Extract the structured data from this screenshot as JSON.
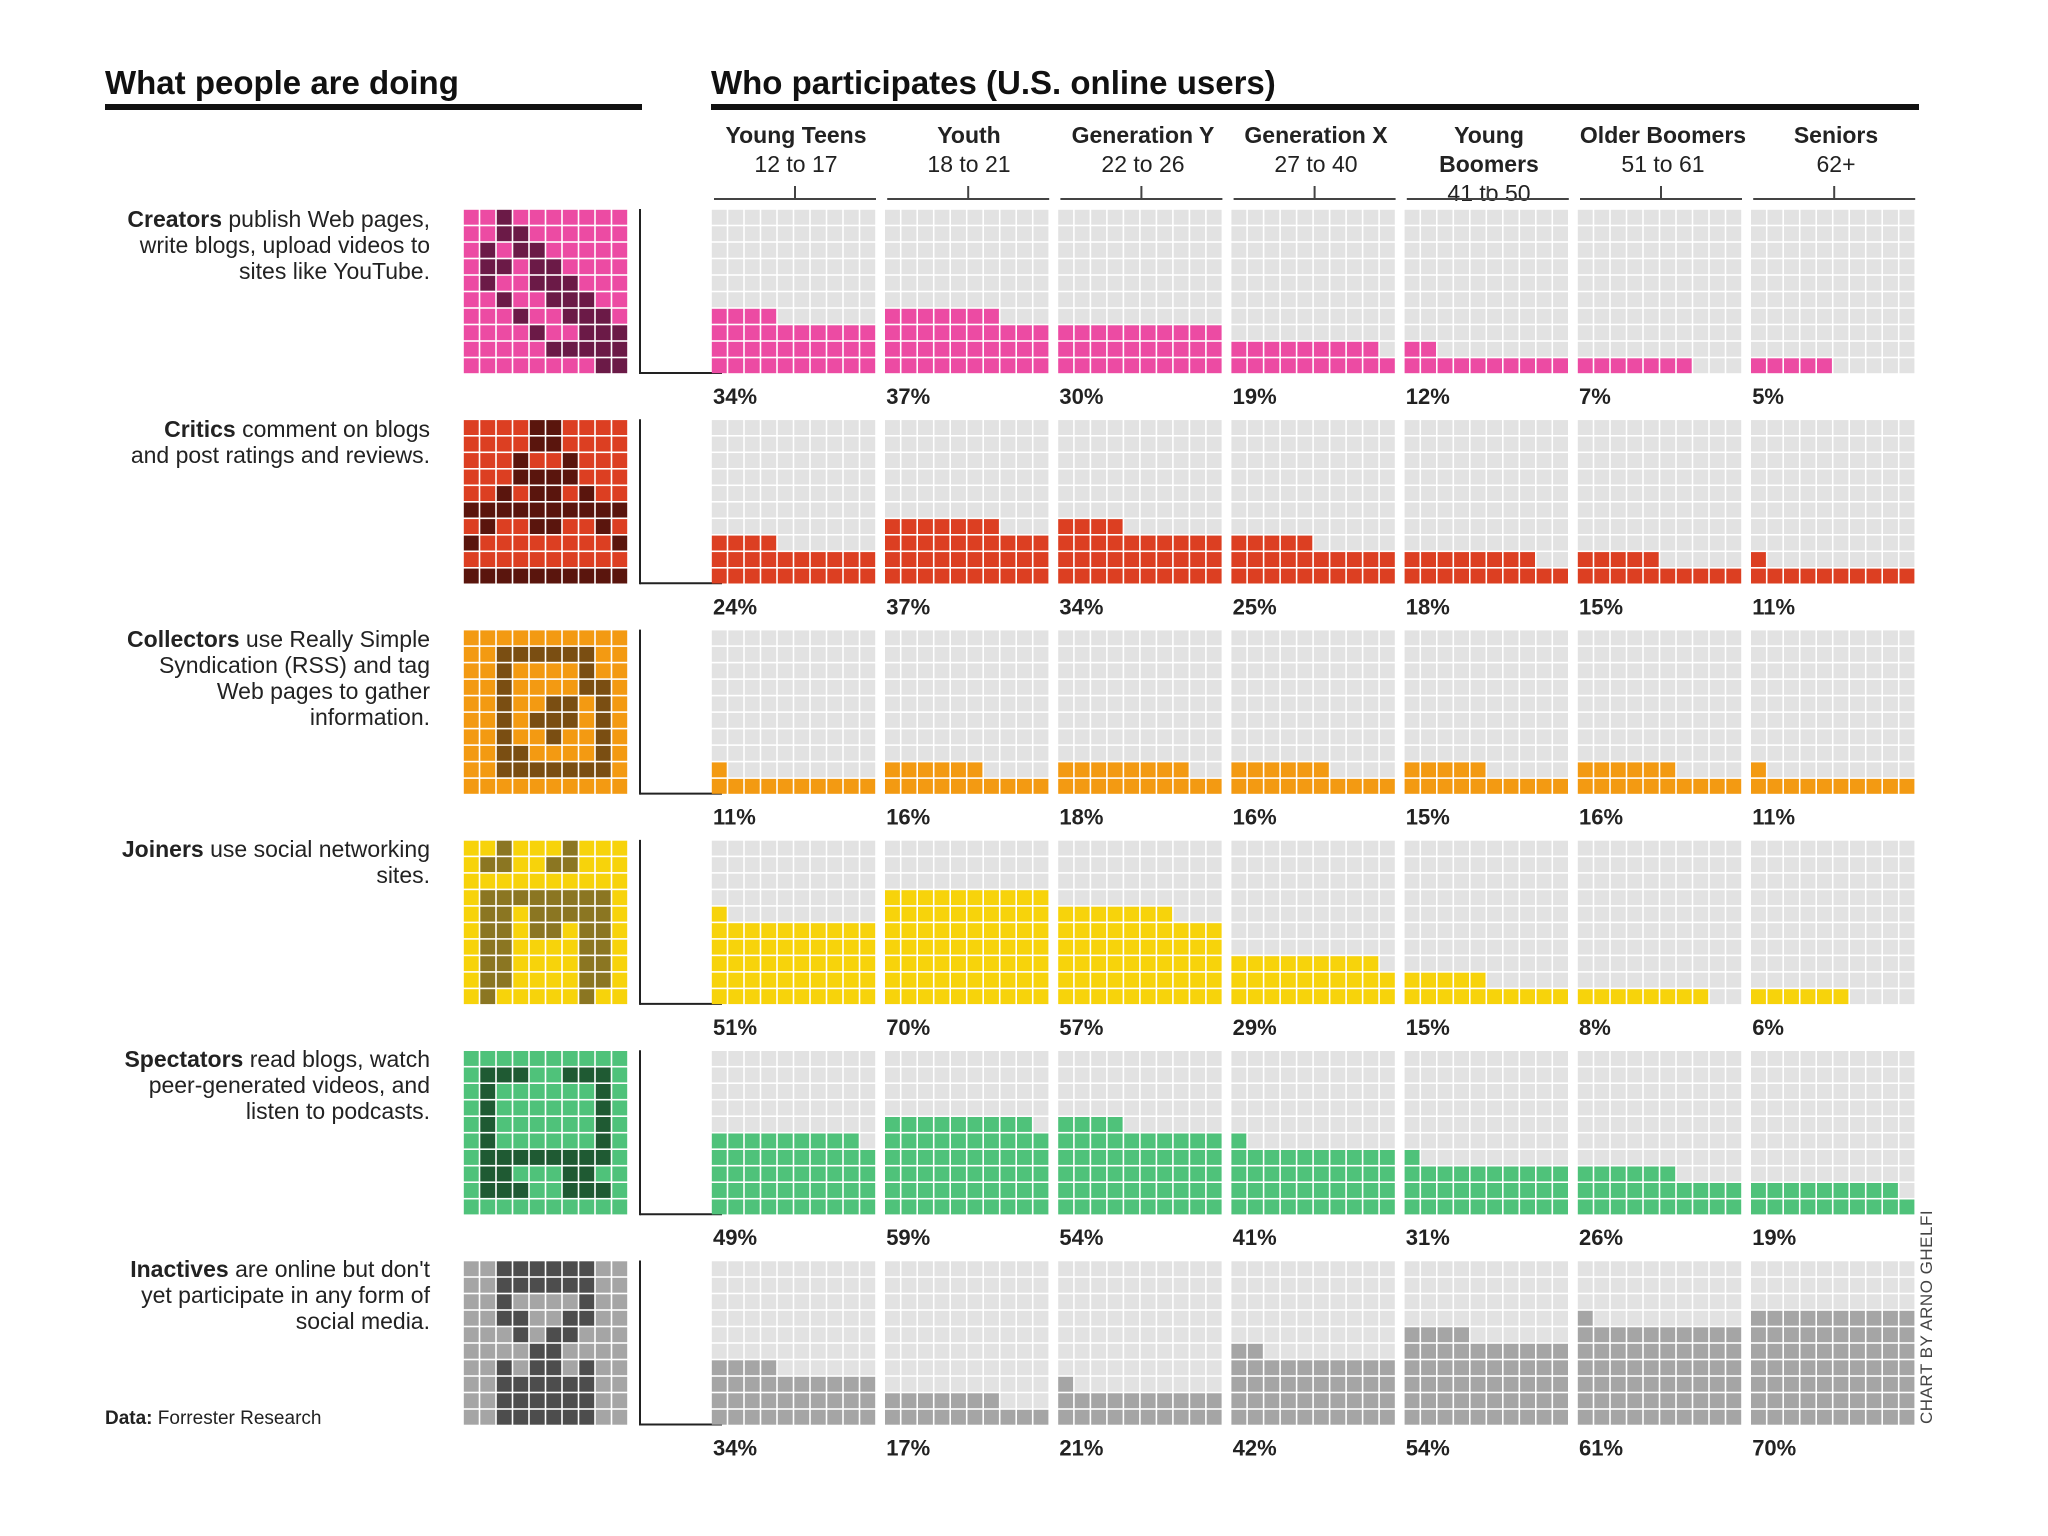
{
  "left_header": "What people are doing",
  "right_header": "Who participates (U.S. online users)",
  "source_label": "Data:",
  "source_text": "Forrester Research",
  "credit": "CHART BY ARNO GHELFI",
  "chart_data": {
    "type": "bar",
    "title": "Who participates (U.S. online users)",
    "unit": "%",
    "categories": [
      "Young Teens",
      "Youth",
      "Generation Y",
      "Generation X",
      "Young Boomers",
      "Older Boomers",
      "Seniors"
    ],
    "age_ranges": [
      "12 to 17",
      "18 to 21",
      "22 to 26",
      "27 to 40",
      "41 to 50",
      "51 to 61",
      "62+"
    ],
    "series": [
      {
        "name": "Creators",
        "description": "publish Web pages, write blogs, upload videos to sites like YouTube.",
        "color": "#ec4ba3",
        "icon_dark": "#6b1a47",
        "icon_name": "pencil-icon",
        "values": [
          34,
          37,
          30,
          19,
          12,
          7,
          5
        ]
      },
      {
        "name": "Critics",
        "description": "comment on blogs and post ratings and reviews.",
        "color": "#dc3f22",
        "icon_dark": "#5a150d",
        "icon_name": "warning-icon",
        "values": [
          24,
          37,
          34,
          25,
          18,
          15,
          11
        ]
      },
      {
        "name": "Collectors",
        "description": "use Really Simple Syndication (RSS) and tag Web pages to gather information.",
        "color": "#f39a12",
        "icon_dark": "#7a4e12",
        "icon_name": "folder-icon",
        "values": [
          11,
          16,
          18,
          16,
          15,
          16,
          11
        ]
      },
      {
        "name": "Joiners",
        "description": "use social networking sites.",
        "color": "#f7d30b",
        "icon_dark": "#8b7622",
        "icon_name": "people-icon",
        "values": [
          51,
          70,
          57,
          29,
          15,
          8,
          6
        ]
      },
      {
        "name": "Spectators",
        "description": "read blogs, watch peer-generated videos, and listen to podcasts.",
        "color": "#4fc27a",
        "icon_dark": "#1f5a33",
        "icon_name": "screen-icon",
        "values": [
          49,
          59,
          54,
          41,
          31,
          26,
          19
        ]
      },
      {
        "name": "Inactives",
        "description": "are online but don't yet participate in any form of social media.",
        "color": "#a5a5a5",
        "icon_dark": "#4d4d4d",
        "icon_name": "hourglass-icon",
        "values": [
          34,
          17,
          21,
          42,
          54,
          61,
          70
        ]
      }
    ]
  }
}
